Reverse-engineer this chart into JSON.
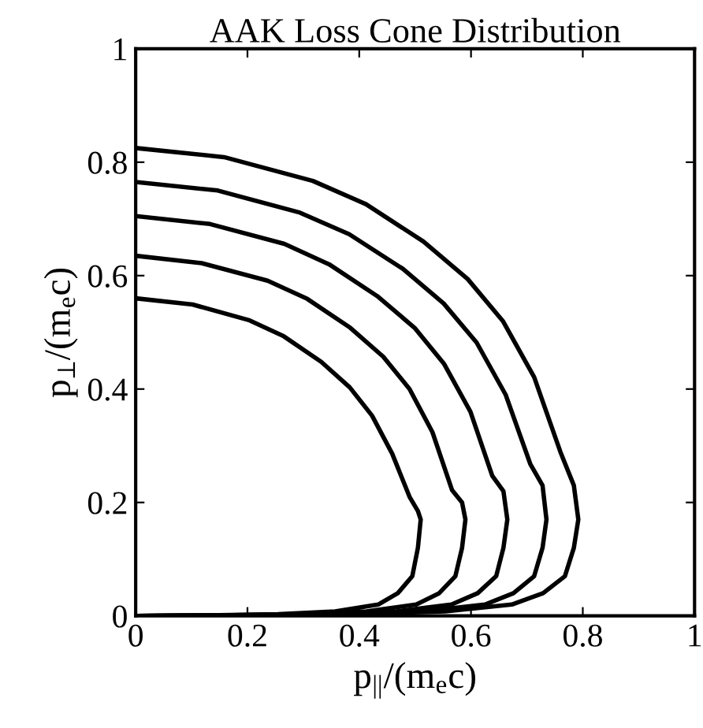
{
  "chart_data": {
    "type": "line",
    "title": "AAK Loss Cone Distribution",
    "xlabel": "p$_{||}$/(m$_{e}$c)",
    "ylabel": "p$_{⊥}$/(m$_{e}$c)",
    "xlim": [
      0,
      1
    ],
    "ylim": [
      0,
      1
    ],
    "xticks": [
      0,
      0.2,
      0.4,
      0.6,
      0.8,
      1
    ],
    "yticks": [
      0,
      0.2,
      0.4,
      0.6,
      0.8,
      1
    ],
    "grid": false,
    "legend": false,
    "marker": "none",
    "line_style": "solid",
    "series": [
      {
        "color": "#000000",
        "x": [
          0,
          0.158,
          0.317,
          0.412,
          0.515,
          0.594,
          0.657,
          0.713,
          0.76,
          0.784,
          0.792,
          0.784,
          0.768,
          0.729,
          0.673,
          0.554,
          0.396,
          0.198,
          0
        ],
        "values": [
          0.825,
          0.809,
          0.767,
          0.726,
          0.66,
          0.594,
          0.52,
          0.421,
          0.289,
          0.23,
          0.17,
          0.12,
          0.07,
          0.04,
          0.02,
          0.008,
          0.003,
          0.001,
          0
        ]
      },
      {
        "color": "#000000",
        "x": [
          0,
          0.147,
          0.294,
          0.382,
          0.478,
          0.551,
          0.61,
          0.662,
          0.706,
          0.728,
          0.735,
          0.728,
          0.713,
          0.676,
          0.625,
          0.515,
          0.368,
          0.184,
          0
        ],
        "values": [
          0.765,
          0.75,
          0.711,
          0.673,
          0.612,
          0.551,
          0.482,
          0.39,
          0.268,
          0.23,
          0.17,
          0.12,
          0.07,
          0.04,
          0.02,
          0.008,
          0.003,
          0.001,
          0
        ]
      },
      {
        "color": "#000000",
        "x": [
          0,
          0.133,
          0.266,
          0.346,
          0.432,
          0.499,
          0.552,
          0.599,
          0.638,
          0.658,
          0.665,
          0.658,
          0.645,
          0.612,
          0.565,
          0.466,
          0.333,
          0.166,
          0
        ],
        "values": [
          0.705,
          0.691,
          0.656,
          0.62,
          0.564,
          0.508,
          0.444,
          0.36,
          0.247,
          0.22,
          0.17,
          0.12,
          0.07,
          0.04,
          0.02,
          0.008,
          0.003,
          0.001,
          0
        ]
      },
      {
        "color": "#000000",
        "x": [
          0,
          0.118,
          0.236,
          0.307,
          0.384,
          0.443,
          0.49,
          0.531,
          0.566,
          0.584,
          0.59,
          0.584,
          0.572,
          0.543,
          0.502,
          0.413,
          0.295,
          0.148,
          0
        ],
        "values": [
          0.635,
          0.622,
          0.591,
          0.559,
          0.508,
          0.457,
          0.4,
          0.324,
          0.222,
          0.2,
          0.17,
          0.12,
          0.07,
          0.04,
          0.02,
          0.008,
          0.003,
          0.001,
          0
        ]
      },
      {
        "color": "#000000",
        "x": [
          0,
          0.102,
          0.204,
          0.265,
          0.332,
          0.383,
          0.423,
          0.459,
          0.49,
          0.505,
          0.51,
          0.505,
          0.495,
          0.469,
          0.434,
          0.357,
          0.255,
          0.128,
          0
        ],
        "values": [
          0.56,
          0.549,
          0.521,
          0.493,
          0.448,
          0.403,
          0.353,
          0.286,
          0.21,
          0.185,
          0.17,
          0.12,
          0.07,
          0.04,
          0.02,
          0.008,
          0.003,
          0.001,
          0
        ]
      }
    ]
  }
}
